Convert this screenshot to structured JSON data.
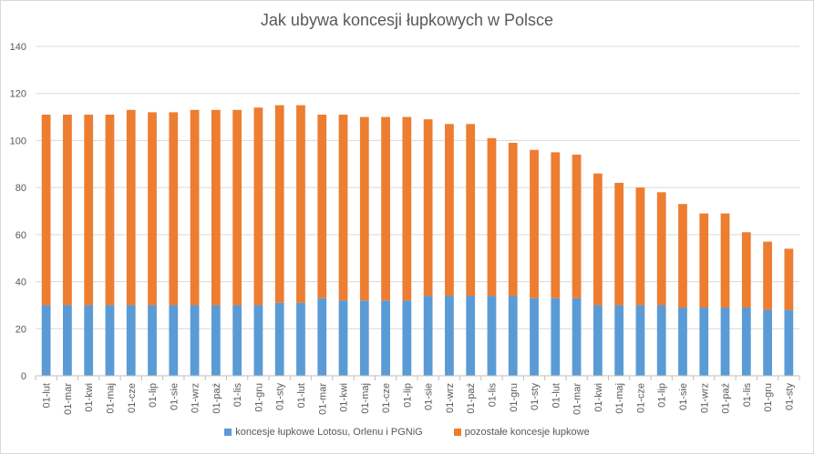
{
  "chart_data": {
    "type": "bar",
    "stacked": true,
    "title": "Jak ubywa koncesji łupkowych w Polsce",
    "xlabel": "",
    "ylabel": "",
    "ylim": [
      0,
      140
    ],
    "yticks": [
      0,
      20,
      40,
      60,
      80,
      100,
      120,
      140
    ],
    "grid": true,
    "legend_position": "bottom",
    "categories": [
      "01-lut",
      "01-mar",
      "01-kwi",
      "01-maj",
      "01-cze",
      "01-lip",
      "01-sie",
      "01-wrz",
      "01-paź",
      "01-lis",
      "01-gru",
      "01-sty",
      "01-lut",
      "01-mar",
      "01-kwi",
      "01-maj",
      "01-cze",
      "01-lip",
      "01-sie",
      "01-wrz",
      "01-paź",
      "01-lis",
      "01-gru",
      "01-sty",
      "01-lut",
      "01-mar",
      "01-kwi",
      "01-maj",
      "01-cze",
      "01-lip",
      "01-sie",
      "01-wrz",
      "01-paź",
      "01-lis",
      "01-gru",
      "01-sty"
    ],
    "series": [
      {
        "name": "koncesje łupkowe Lotosu, Orlenu i PGNiG",
        "color": "#5b9bd5",
        "values": [
          30,
          30,
          30,
          30,
          30,
          30,
          30,
          30,
          30,
          30,
          30,
          31,
          31,
          33,
          32,
          32,
          32,
          32,
          34,
          34,
          34,
          34,
          34,
          33,
          33,
          33,
          30,
          30,
          30,
          30,
          29,
          29,
          29,
          29,
          28,
          28
        ]
      },
      {
        "name": "pozostałe koncesje łupkowe",
        "color": "#ed7d31",
        "values": [
          81,
          81,
          81,
          81,
          83,
          82,
          82,
          83,
          83,
          83,
          84,
          84,
          84,
          78,
          79,
          78,
          78,
          78,
          75,
          73,
          73,
          67,
          65,
          63,
          62,
          61,
          56,
          52,
          50,
          48,
          44,
          40,
          40,
          32,
          29,
          26
        ]
      }
    ]
  }
}
